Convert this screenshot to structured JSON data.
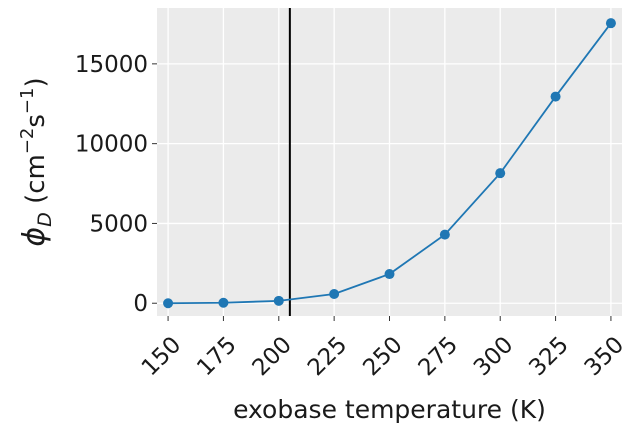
{
  "chart_data": {
    "type": "line",
    "title": "",
    "xlabel": "exobase temperature (K)",
    "ylabel": {
      "symbol": "ϕ",
      "subscript": "D",
      "units_open": " (cm",
      "exp1": "−2",
      "units_mid": "s",
      "exp2": "−1",
      "units_close": ")"
    },
    "x_ticks": [
      150,
      175,
      200,
      225,
      250,
      275,
      300,
      325,
      350
    ],
    "y_ticks": [
      0,
      5000,
      10000,
      15000
    ],
    "xlim": [
      145,
      355
    ],
    "ylim": [
      -800,
      18500
    ],
    "grid": true,
    "legend": "none",
    "series": [
      {
        "x": [
          150,
          175,
          200,
          225,
          250,
          275,
          300,
          325,
          350
        ],
        "y": [
          0,
          30,
          150,
          580,
          1830,
          4300,
          8150,
          12950,
          17550
        ],
        "color": "#1f77b4",
        "marker": "circle"
      }
    ],
    "annotations": [
      {
        "type": "vline",
        "x": 205,
        "color": "#000000"
      }
    ],
    "colors": {
      "plot_background": "#ebebeb",
      "grid": "#ffffff"
    }
  }
}
